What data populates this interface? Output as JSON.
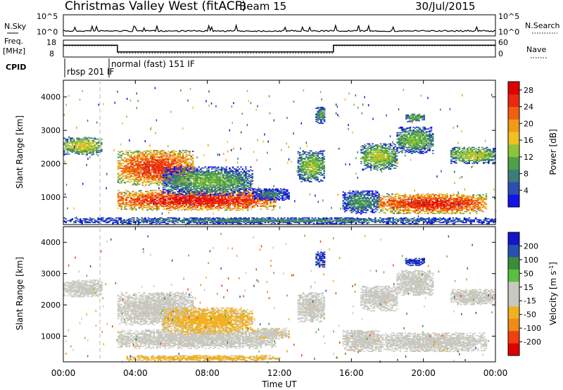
{
  "header": {
    "station": "Christmas Valley West (fitACF)",
    "beam": "Beam 15",
    "date": "30/Jul/2015"
  },
  "strip": {
    "nsky_label": "N.Sky",
    "nsky_ticks": [
      "10^5",
      "10^0"
    ],
    "nsearch_label": "N.Search",
    "nsearch_ticks": [
      "10^5",
      "10^0"
    ],
    "freq_label_1": "Freq.",
    "freq_label_2": "[MHz]",
    "freq_ticks": [
      "18",
      "8"
    ],
    "nave_label": "Nave",
    "nave_ticks": [
      "60",
      "0"
    ],
    "cpid_label": "CPID",
    "cpid_modes": [
      "rbsp 201 IF",
      "normal (fast) 151 IF"
    ]
  },
  "chart_data": [
    {
      "type": "step",
      "name": "frequency-nave strip",
      "x_unit": "hours UT",
      "x_range": [
        0,
        24
      ],
      "ylim_freq": [
        8,
        18
      ],
      "ylim_nave": [
        0,
        60
      ],
      "frequency_segments": [
        {
          "start": 0,
          "end": 3,
          "value": 15
        },
        {
          "start": 3,
          "end": 15,
          "value": 11
        },
        {
          "start": 15,
          "end": 24,
          "value": 15
        }
      ],
      "nave_segments": [
        {
          "start": 0,
          "end": 3,
          "value": 40
        },
        {
          "start": 3,
          "end": 15,
          "value": 14
        },
        {
          "start": 15,
          "end": 24,
          "value": 40
        }
      ],
      "cpid_segments": [
        {
          "start": 0,
          "end": 3,
          "mode": "rbsp 201 IF"
        },
        {
          "start": 3,
          "end": 15,
          "mode": "normal (fast) 151 IF"
        }
      ]
    },
    {
      "type": "heatmap",
      "name": "power",
      "x_unit": "hours UT",
      "x_range": [
        0,
        24
      ],
      "xticks": [
        "00:00",
        "04:00",
        "08:00",
        "12:00",
        "16:00",
        "20:00",
        "00:00"
      ],
      "xlabel": "Time UT",
      "ylabel": "Slant Range [km]",
      "ylim": [
        180,
        4500
      ],
      "yticks": [
        "1000",
        "2000",
        "3000",
        "4000"
      ],
      "colorbar_label": "Power [dB]",
      "colorbar_ticks": [
        "4",
        "8",
        "12",
        "16",
        "20",
        "24",
        "28"
      ],
      "colorbar_range": [
        0,
        30
      ],
      "colors": [
        "#1414e6",
        "#2a4fb0",
        "#3c7d7a",
        "#4ea04a",
        "#8fc43a",
        "#f0c020",
        "#f09a18",
        "#f06010",
        "#e82810",
        "#e00000"
      ],
      "blobs": [
        {
          "t0": 0.0,
          "t1": 2.1,
          "r0": 2250,
          "r1": 2800,
          "level": 16
        },
        {
          "t0": 3.0,
          "t1": 7.2,
          "r0": 1350,
          "r1": 2400,
          "level": 25
        },
        {
          "t0": 3.0,
          "t1": 11.8,
          "r0": 600,
          "r1": 1200,
          "level": 27
        },
        {
          "t0": 5.5,
          "t1": 10.5,
          "r0": 1050,
          "r1": 1900,
          "level": 12
        },
        {
          "t0": 10.5,
          "t1": 12.5,
          "r0": 900,
          "r1": 1250,
          "level": 8
        },
        {
          "t0": 13.0,
          "t1": 14.5,
          "r0": 1450,
          "r1": 2400,
          "level": 14
        },
        {
          "t0": 14.0,
          "t1": 14.5,
          "r0": 3200,
          "r1": 3700,
          "level": 11
        },
        {
          "t0": 15.5,
          "t1": 17.5,
          "r0": 500,
          "r1": 1200,
          "level": 10
        },
        {
          "t0": 17.5,
          "t1": 23.5,
          "r0": 500,
          "r1": 1100,
          "level": 26
        },
        {
          "t0": 16.5,
          "t1": 18.5,
          "r0": 1800,
          "r1": 2600,
          "level": 15
        },
        {
          "t0": 18.5,
          "t1": 20.5,
          "r0": 2300,
          "r1": 3100,
          "level": 13
        },
        {
          "t0": 19.0,
          "t1": 20.0,
          "r0": 3250,
          "r1": 3500,
          "level": 12
        },
        {
          "t0": 21.5,
          "t1": 24.0,
          "r0": 2000,
          "r1": 2500,
          "level": 15
        },
        {
          "t0": 0.0,
          "t1": 24.0,
          "r0": 200,
          "r1": 380,
          "level": 9
        }
      ]
    },
    {
      "type": "heatmap",
      "name": "velocity",
      "x_unit": "hours UT",
      "x_range": [
        0,
        24
      ],
      "xticks": [
        "00:00",
        "04:00",
        "08:00",
        "12:00",
        "16:00",
        "20:00",
        "00:00"
      ],
      "xlabel": "Time UT",
      "ylabel": "Slant Range [km]",
      "ylim": [
        180,
        4500
      ],
      "yticks": [
        "1000",
        "2000",
        "3000",
        "4000"
      ],
      "colorbar_label": "Velocity [m s^-1]",
      "colorbar_ticks": [
        "200",
        "100",
        "50",
        "15",
        "-15",
        "-50",
        "-100",
        "-200"
      ],
      "colorbar_range": [
        -250,
        250
      ],
      "colors": [
        "#e00000",
        "#f04010",
        "#f08a18",
        "#f0b020",
        "#c8c8c0",
        "#c8c8c0",
        "#58c040",
        "#3c8c3c",
        "#2850b0",
        "#1414c8"
      ],
      "blobs": [
        {
          "t0": 0.0,
          "t1": 2.1,
          "r0": 2250,
          "r1": 2800,
          "level": 0
        },
        {
          "t0": 3.0,
          "t1": 7.2,
          "r0": 1350,
          "r1": 2400,
          "level": 0
        },
        {
          "t0": 3.0,
          "t1": 11.8,
          "r0": 600,
          "r1": 1200,
          "level": -20
        },
        {
          "t0": 5.5,
          "t1": 10.5,
          "r0": 1050,
          "r1": 1900,
          "level": -60
        },
        {
          "t0": 10.5,
          "t1": 12.5,
          "r0": 900,
          "r1": 1250,
          "level": -40
        },
        {
          "t0": 13.0,
          "t1": 14.5,
          "r0": 1450,
          "r1": 2400,
          "level": 0
        },
        {
          "t0": 14.0,
          "t1": 14.5,
          "r0": 3200,
          "r1": 3700,
          "level": 200
        },
        {
          "t0": 15.5,
          "t1": 17.5,
          "r0": 500,
          "r1": 1200,
          "level": 0
        },
        {
          "t0": 17.5,
          "t1": 23.5,
          "r0": 500,
          "r1": 1100,
          "level": 0
        },
        {
          "t0": 16.5,
          "t1": 18.5,
          "r0": 1800,
          "r1": 2600,
          "level": 0
        },
        {
          "t0": 18.5,
          "t1": 20.5,
          "r0": 2300,
          "r1": 3100,
          "level": 0
        },
        {
          "t0": 19.0,
          "t1": 20.0,
          "r0": 3250,
          "r1": 3500,
          "level": 200
        },
        {
          "t0": 21.5,
          "t1": 24.0,
          "r0": 2000,
          "r1": 2500,
          "level": 0
        },
        {
          "t0": 3.5,
          "t1": 12.0,
          "r0": 200,
          "r1": 380,
          "level": -60
        }
      ]
    }
  ]
}
